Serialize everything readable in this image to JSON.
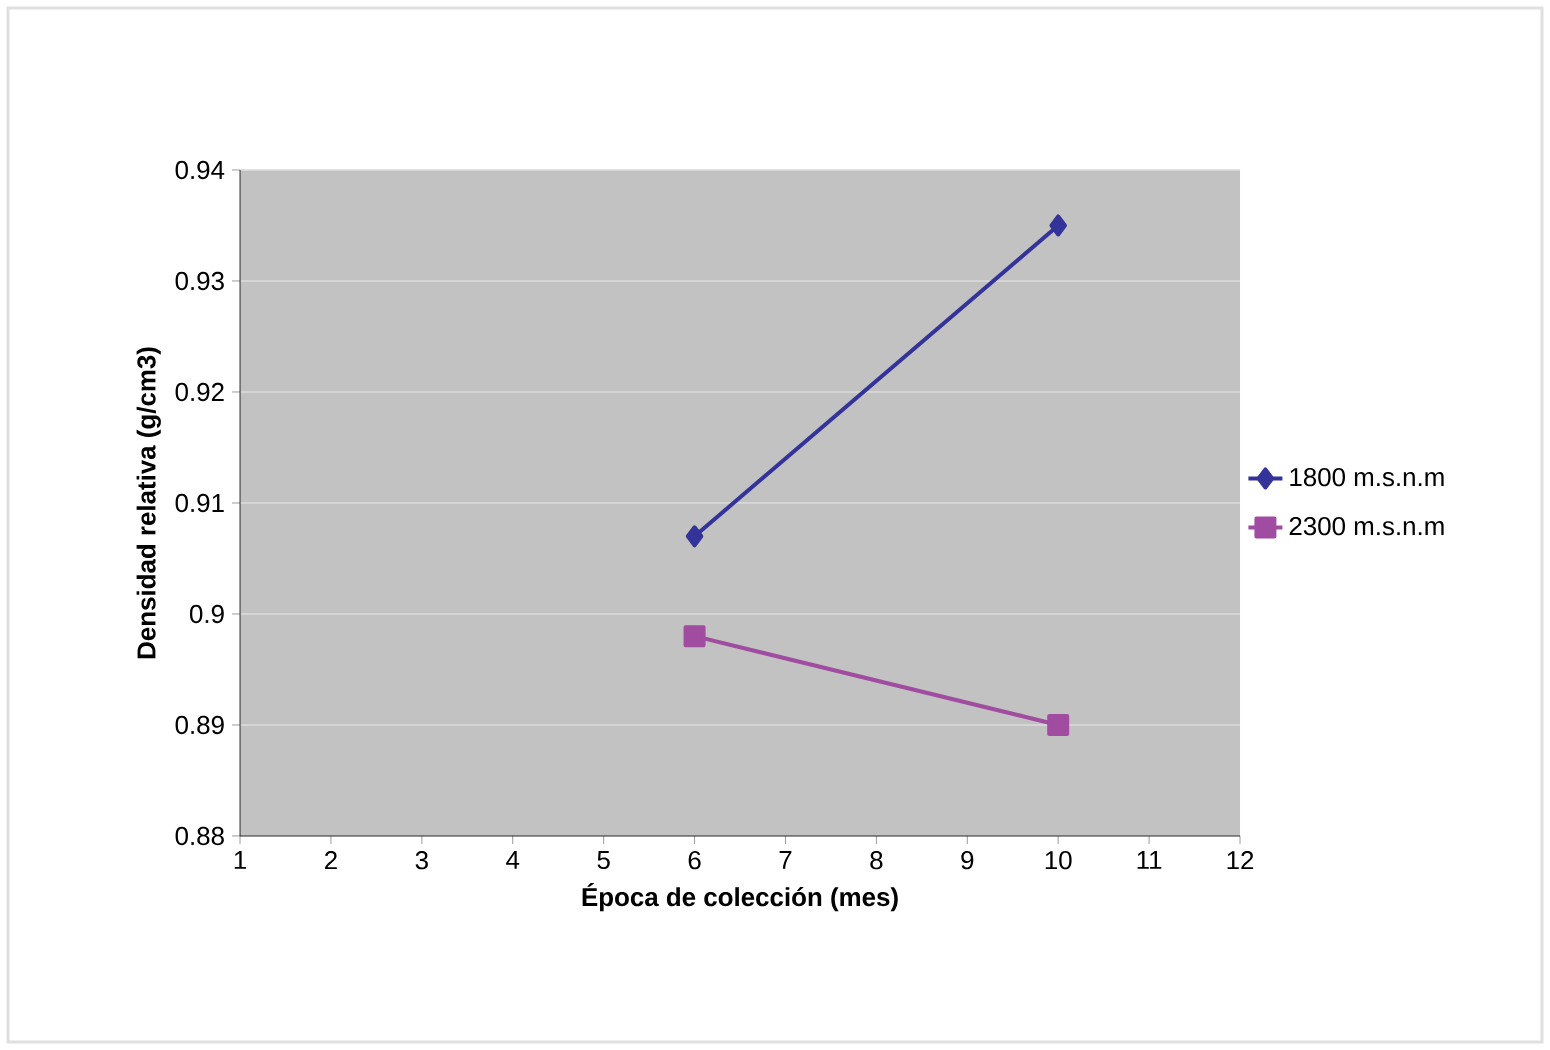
{
  "chart_data": {
    "type": "line",
    "xlabel": "Época de colección (mes)",
    "ylabel": "Densidad relativa (g/cm3)",
    "x": [
      6,
      10
    ],
    "series": [
      {
        "name": "1800 m.s.n.m",
        "color": "#333399",
        "values": [
          0.907,
          0.935
        ],
        "marker": "diamond"
      },
      {
        "name": "2300 m.s.n.m",
        "color": "#a04ca0",
        "values": [
          0.898,
          0.89
        ],
        "marker": "square"
      }
    ],
    "xlim": [
      1,
      12
    ],
    "xticks": [
      1,
      2,
      3,
      4,
      5,
      6,
      7,
      8,
      9,
      10,
      11,
      12
    ],
    "ylim": [
      0.88,
      0.94
    ],
    "yticks": [
      0.88,
      0.89,
      0.9,
      0.91,
      0.92,
      0.93,
      0.94
    ],
    "grid": "y",
    "legend": "right",
    "line_style": "solid"
  }
}
